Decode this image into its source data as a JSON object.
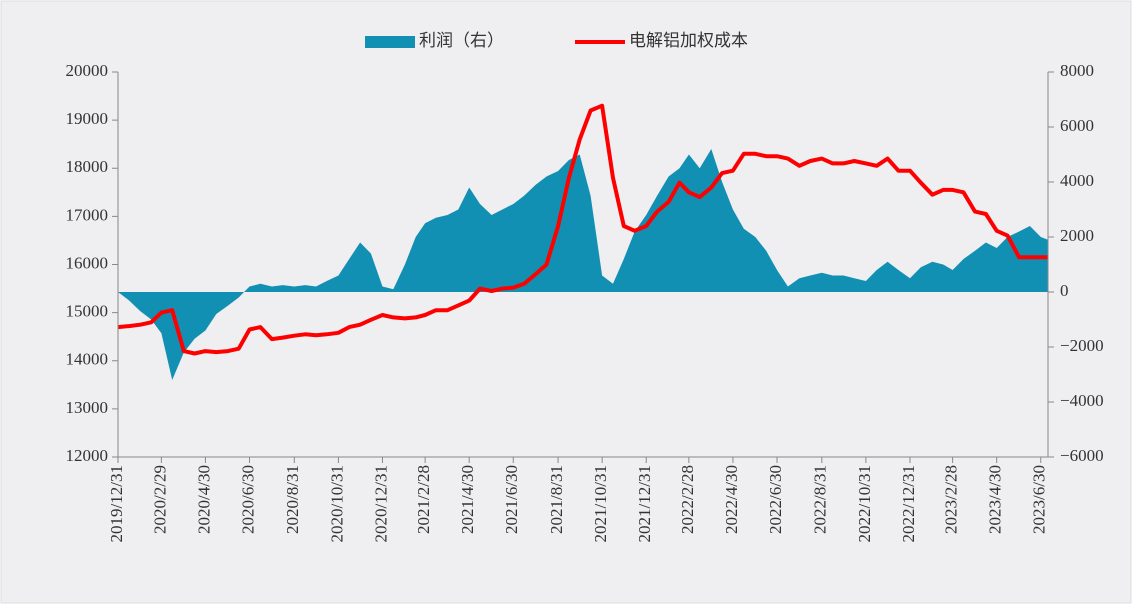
{
  "chart_data": {
    "type": "area-line",
    "x": [
      "2019/12/31",
      "2020/1/15",
      "2020/1/31",
      "2020/2/15",
      "2020/2/29",
      "2020/3/15",
      "2020/3/31",
      "2020/4/15",
      "2020/4/30",
      "2020/5/15",
      "2020/5/31",
      "2020/6/15",
      "2020/6/30",
      "2020/7/15",
      "2020/7/31",
      "2020/8/15",
      "2020/8/31",
      "2020/9/15",
      "2020/9/30",
      "2020/10/15",
      "2020/10/31",
      "2020/11/15",
      "2020/11/30",
      "2020/12/15",
      "2020/12/31",
      "2021/1/15",
      "2021/1/31",
      "2021/2/15",
      "2021/2/28",
      "2021/3/15",
      "2021/3/31",
      "2021/4/15",
      "2021/4/30",
      "2021/5/15",
      "2021/5/31",
      "2021/6/15",
      "2021/6/30",
      "2021/7/15",
      "2021/7/31",
      "2021/8/15",
      "2021/8/31",
      "2021/9/15",
      "2021/9/30",
      "2021/10/15",
      "2021/10/31",
      "2021/11/15",
      "2021/11/30",
      "2021/12/15",
      "2021/12/31",
      "2022/1/15",
      "2022/1/31",
      "2022/2/15",
      "2022/2/28",
      "2022/3/15",
      "2022/3/31",
      "2022/4/15",
      "2022/4/30",
      "2022/5/15",
      "2022/5/31",
      "2022/6/15",
      "2022/6/30",
      "2022/7/15",
      "2022/7/31",
      "2022/8/15",
      "2022/8/31",
      "2022/9/15",
      "2022/9/30",
      "2022/10/15",
      "2022/10/31",
      "2022/11/15",
      "2022/11/30",
      "2022/12/15",
      "2022/12/31",
      "2023/1/15",
      "2023/1/31",
      "2023/2/15",
      "2023/2/28",
      "2023/3/15",
      "2023/3/31",
      "2023/4/15",
      "2023/4/30",
      "2023/5/15",
      "2023/5/31",
      "2023/6/15",
      "2023/6/30",
      "2023/7/10"
    ],
    "series": [
      {
        "name": "利润（右）",
        "kind": "area",
        "axis": "y2",
        "color": "#1190b3",
        "values": [
          0,
          -300,
          -700,
          -1000,
          -1500,
          -3200,
          -2200,
          -1700,
          -1400,
          -800,
          -500,
          -200,
          200,
          300,
          200,
          250,
          200,
          250,
          200,
          400,
          600,
          1200,
          1800,
          1400,
          200,
          100,
          1000,
          2000,
          2500,
          2700,
          2800,
          3000,
          3800,
          3200,
          2800,
          3000,
          3200,
          3500,
          3900,
          4200,
          4400,
          4800,
          5000,
          3500,
          600,
          300,
          1200,
          2200,
          2800,
          3500,
          4200,
          4500,
          5000,
          4500,
          5200,
          4000,
          3000,
          2300,
          2000,
          1500,
          800,
          200,
          500,
          600,
          700,
          600,
          600,
          500,
          400,
          800,
          1100,
          800,
          500,
          900,
          1100,
          1000,
          800,
          1200,
          1500,
          1800,
          1600,
          2000,
          2200,
          2400,
          2000,
          1900
        ]
      },
      {
        "name": "电解铝加权成本",
        "kind": "line",
        "color": "#ff0000",
        "values": [
          14700,
          14720,
          14750,
          14800,
          15000,
          15050,
          14200,
          14150,
          14200,
          14180,
          14200,
          14250,
          14650,
          14700,
          14450,
          14480,
          14520,
          14550,
          14530,
          14550,
          14580,
          14700,
          14750,
          14850,
          14950,
          14900,
          14880,
          14900,
          14950,
          15050,
          15050,
          15150,
          15250,
          15500,
          15450,
          15500,
          15520,
          15600,
          15800,
          16000,
          16800,
          17800,
          18600,
          19200,
          19300,
          17800,
          16800,
          16700,
          16800,
          17100,
          17300,
          17700,
          17500,
          17400,
          17600,
          17900,
          17950,
          18300,
          18300,
          18250,
          18250,
          18200,
          18050,
          18150,
          18200,
          18100,
          18100,
          18150,
          18100,
          18050,
          18200,
          17950,
          17950,
          17700,
          17450,
          17550,
          17550,
          17500,
          17100,
          17050,
          16700,
          16600,
          16150,
          16150,
          16150,
          16150
        ]
      }
    ],
    "xlim": [
      "2019/12/31",
      "2023/7/10"
    ],
    "xticks": [
      "2019/12/31",
      "2020/2/29",
      "2020/4/30",
      "2020/6/30",
      "2020/8/31",
      "2020/10/31",
      "2020/12/31",
      "2021/2/28",
      "2021/4/30",
      "2021/6/30",
      "2021/8/31",
      "2021/10/31",
      "2021/12/31",
      "2022/2/28",
      "2022/4/30",
      "2022/6/30",
      "2022/8/31",
      "2022/10/31",
      "2022/12/31",
      "2023/2/28",
      "2023/4/30",
      "2023/6/30"
    ],
    "ylim": [
      12000,
      20000
    ],
    "yticks": [
      12000,
      13000,
      14000,
      15000,
      16000,
      17000,
      18000,
      19000,
      20000
    ],
    "y2lim": [
      -6000,
      8000
    ],
    "y2ticks": [
      {
        "value": -6000,
        "label": "−6000"
      },
      {
        "value": -4000,
        "label": "−4000"
      },
      {
        "value": -2000,
        "label": "−2000"
      },
      0,
      2000,
      4000,
      6000,
      8000
    ],
    "legend": "top"
  }
}
